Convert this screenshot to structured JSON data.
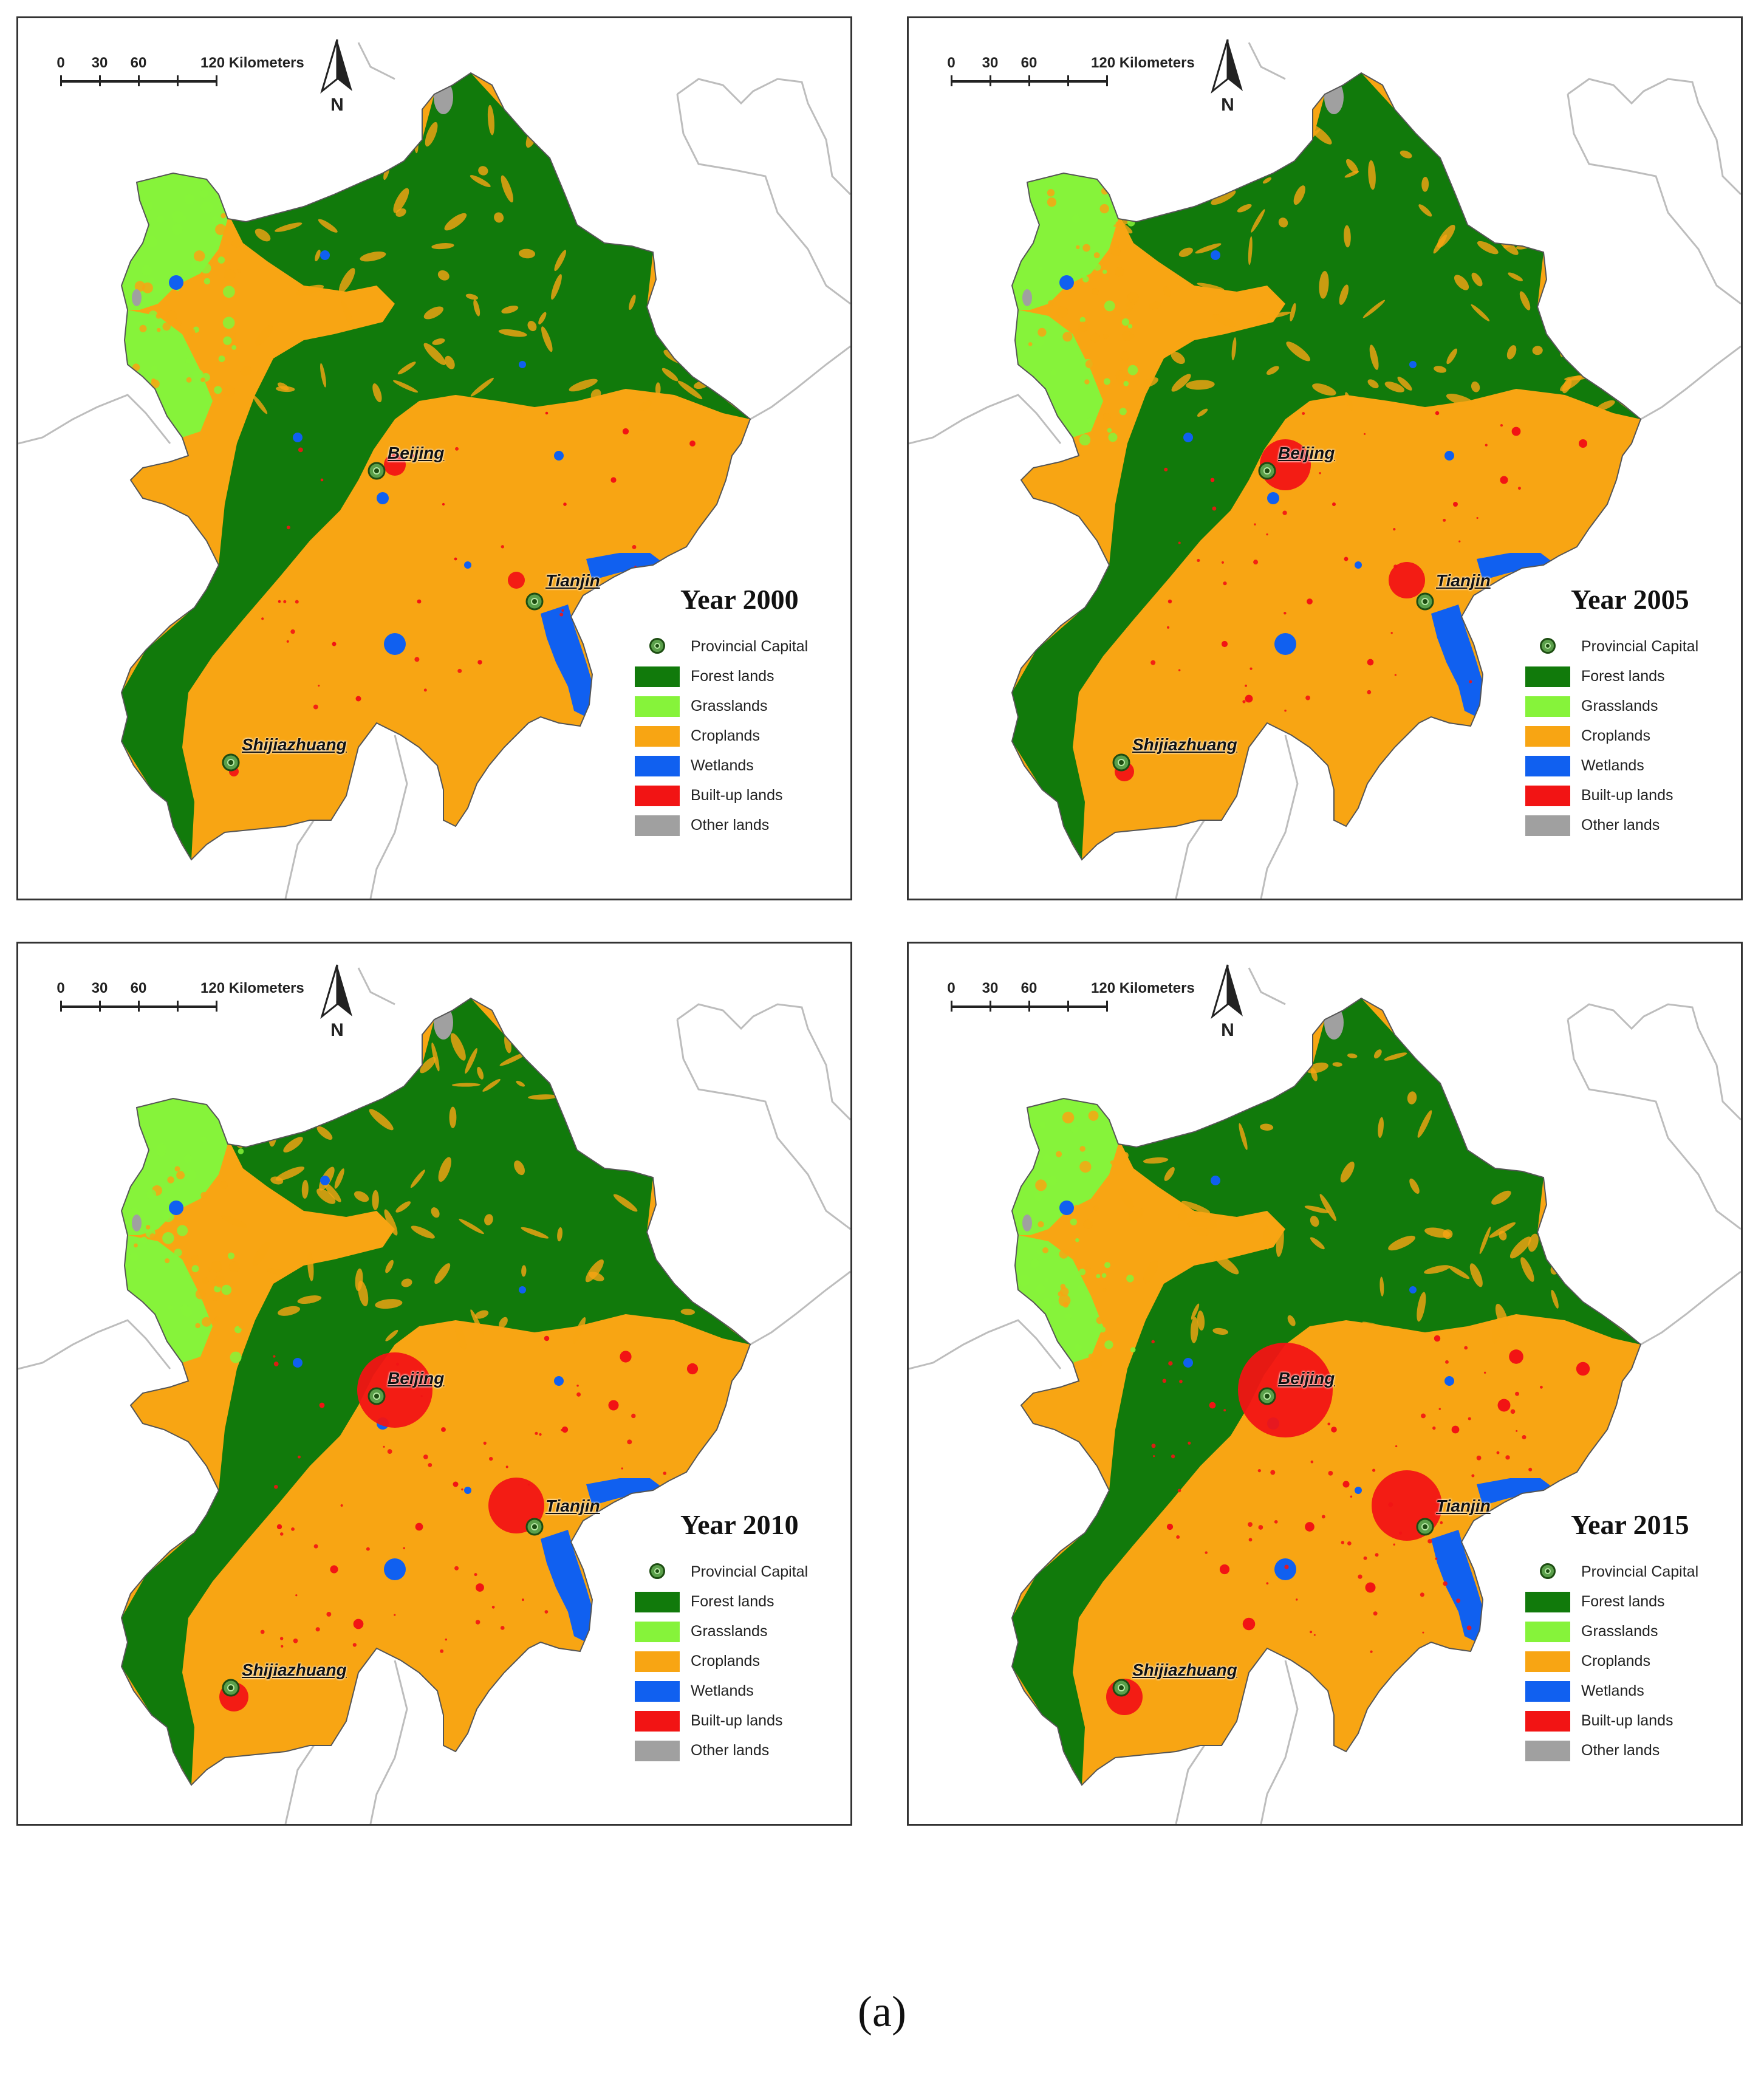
{
  "colors": {
    "forest": "#117a0b",
    "grass": "#86f33a",
    "crop": "#f8a513",
    "wetland": "#1060f0",
    "builtup": "#f21414",
    "other": "#a0a0a0",
    "boundary": "#bdbdbd"
  },
  "scale": {
    "labels": [
      "0",
      "30",
      "60",
      "120 Kilometers"
    ]
  },
  "north_label": "N",
  "cities": [
    "Beijing",
    "Tianjin",
    "Shijiazhuang"
  ],
  "legend": [
    {
      "key": "capital",
      "label": "Provincial Capital",
      "icon": "provincial-capital-icon"
    },
    {
      "key": "forest",
      "label": "Forest lands"
    },
    {
      "key": "grass",
      "label": "Grasslands"
    },
    {
      "key": "crop",
      "label": "Croplands"
    },
    {
      "key": "wetland",
      "label": "Wetlands"
    },
    {
      "key": "builtup",
      "label": "Built-up lands"
    },
    {
      "key": "other",
      "label": "Other lands"
    }
  ],
  "panels": [
    {
      "year_label": "Year 2000",
      "urban_level": 1
    },
    {
      "year_label": "Year 2005",
      "urban_level": 2
    },
    {
      "year_label": "Year 2010",
      "urban_level": 3
    },
    {
      "year_label": "Year 2015",
      "urban_level": 4
    }
  ],
  "caption": "(a)"
}
